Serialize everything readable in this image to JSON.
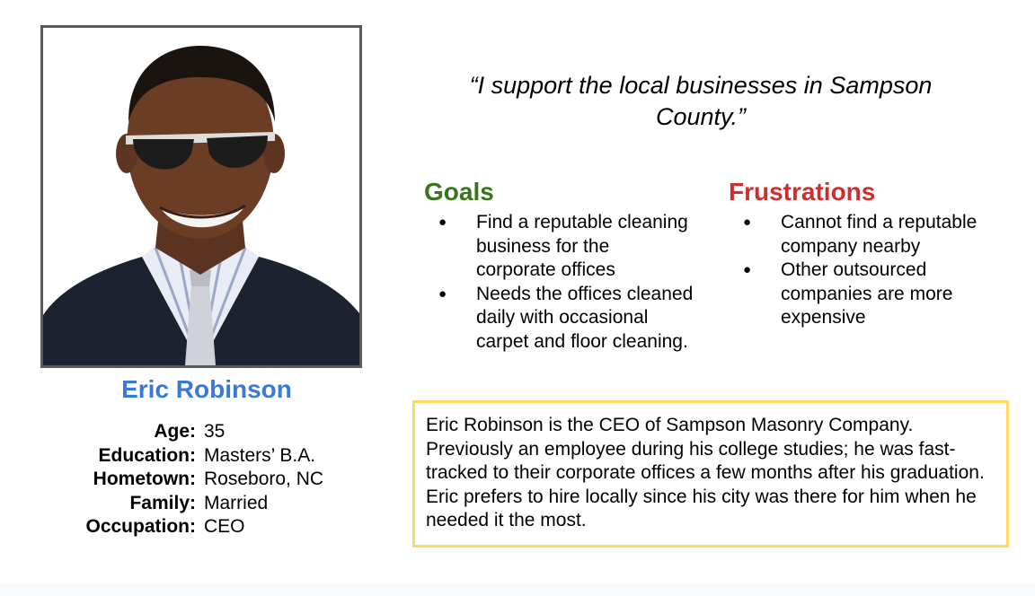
{
  "persona": {
    "name": "Eric Robinson",
    "quote": "“I support the local businesses in Sampson County.”",
    "details": [
      {
        "label": "Age:",
        "value": "35"
      },
      {
        "label": "Education:",
        "value": "Masters’ B.A."
      },
      {
        "label": "Hometown:",
        "value": "Roseboro, NC"
      },
      {
        "label": "Family:",
        "value": "Married"
      },
      {
        "label": "Occupation:",
        "value": "CEO"
      }
    ],
    "goals": {
      "heading": "Goals",
      "items": [
        "Find a reputable cleaning business for the corporate offices",
        "Needs the offices cleaned daily with occasional carpet and floor cleaning."
      ]
    },
    "frustrations": {
      "heading": "Frustrations",
      "items": [
        "Cannot find a reputable company nearby",
        "Other outsourced companies are more expensive"
      ]
    },
    "bio": "Eric Robinson is the CEO of Sampson Masonry Company. Previously an employee during his college studies; he was fast-tracked to their corporate offices  a few months after his graduation. Eric prefers to hire locally since his city was there for him when he needed it the most."
  },
  "colors": {
    "name": "#3c78d8",
    "goals": "#38761d",
    "frustrations": "#cc2f2f",
    "bio_border": "#ffd966",
    "photo_border": "#595959"
  },
  "bullet_glyph": "●",
  "photo_icon": "portrait-photo"
}
